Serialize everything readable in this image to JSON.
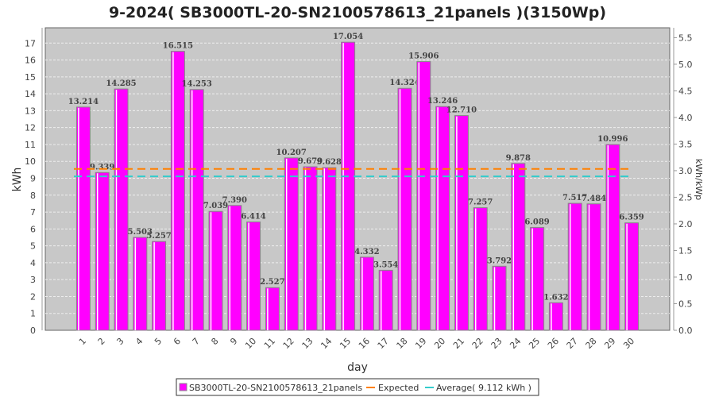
{
  "chart_data": {
    "type": "bar",
    "title": "9-2024( SB3000TL-20-SN2100578613_21panels )(3150Wp)",
    "xlabel": "day",
    "ylabel": "kWh",
    "y2label": "kWh/kWp",
    "ylim": [
      0,
      17.85
    ],
    "y2lim": [
      0,
      5.667
    ],
    "yticks": [
      0,
      1,
      2,
      3,
      4,
      5,
      6,
      7,
      8,
      9,
      10,
      11,
      12,
      13,
      14,
      15,
      16,
      17
    ],
    "y2ticks": [
      "0.0",
      "0.5",
      "1.0",
      "1.5",
      "2.0",
      "2.5",
      "3.0",
      "3.5",
      "4.0",
      "4.5",
      "5.0",
      "5.5"
    ],
    "categories": [
      "1",
      "2",
      "3",
      "4",
      "5",
      "6",
      "7",
      "8",
      "9",
      "10",
      "11",
      "12",
      "13",
      "14",
      "15",
      "16",
      "17",
      "18",
      "19",
      "20",
      "21",
      "22",
      "23",
      "24",
      "25",
      "26",
      "27",
      "28",
      "29",
      "30"
    ],
    "series": [
      {
        "name": "SB3000TL-20-SN2100578613_21panels",
        "color": "#ff00ff",
        "values": [
          13.214,
          9.339,
          14.285,
          5.503,
          5.257,
          16.515,
          14.253,
          7.039,
          7.39,
          6.414,
          2.527,
          10.207,
          9.679,
          9.628,
          17.054,
          4.332,
          3.554,
          14.324,
          15.906,
          13.246,
          12.71,
          7.257,
          3.792,
          9.878,
          6.089,
          1.632,
          7.517,
          7.484,
          10.996,
          6.359
        ],
        "labels": [
          "13.214",
          "9.339",
          "14.285",
          "5.503",
          "5.257",
          "16.515",
          "14.253",
          "7.039",
          "7.390",
          "6.414",
          "2.527",
          "10.207",
          "9.679",
          "9.628",
          "17.054",
          "4.332",
          "3.554",
          "14.324",
          "15.906",
          "13.246",
          "12.710",
          "7.257",
          "3.792",
          "9.878",
          "6.089",
          "1.632",
          "7.517",
          "7.484",
          "10.996",
          "6.359"
        ]
      }
    ],
    "lines": [
      {
        "name": "Expected",
        "value": 9.55,
        "color": "#ff8000"
      },
      {
        "name": "Average( 9.112 kWh )",
        "value": 9.112,
        "color": "#33cccc"
      }
    ],
    "legend": "bottom",
    "grid": true
  }
}
